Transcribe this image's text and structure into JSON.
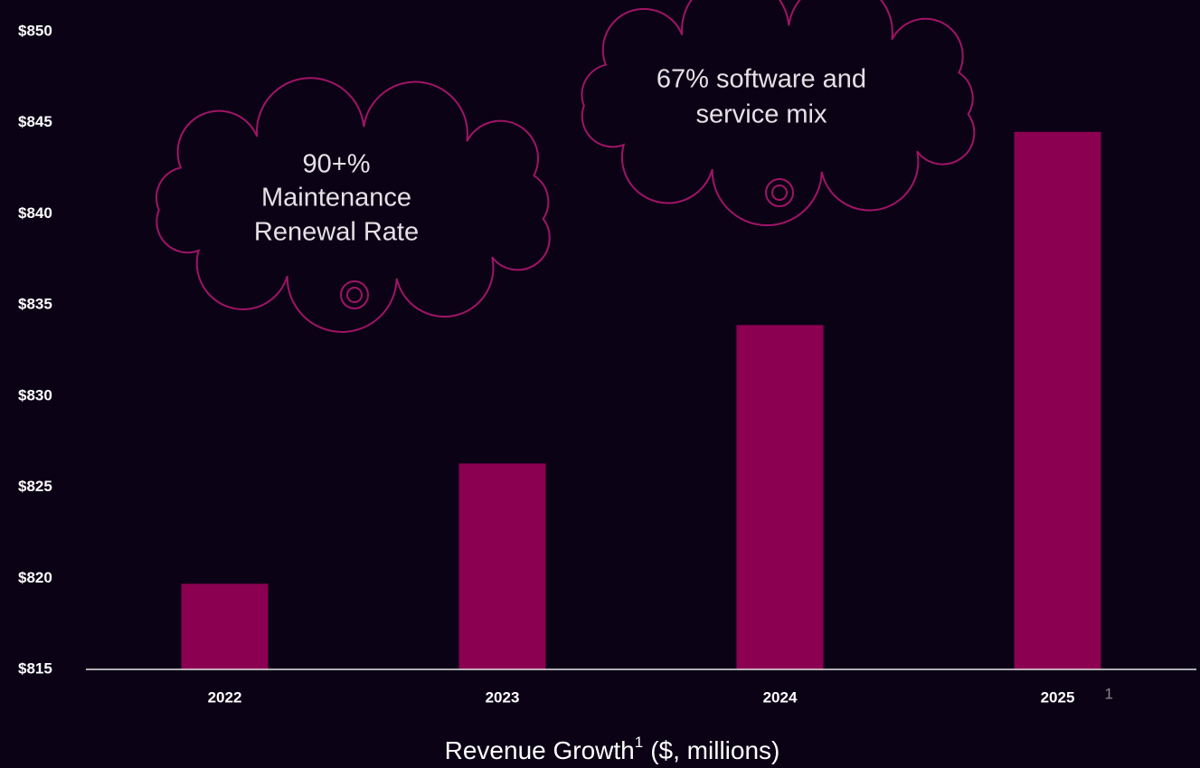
{
  "chart_data": {
    "type": "bar",
    "title": "Revenue Growth",
    "title_note_mark": "1",
    "subtitle": "($, millions)",
    "footnote_mark": "1",
    "categories": [
      "2022",
      "2023",
      "2024",
      "2025"
    ],
    "values": [
      819.7,
      826.3,
      833.9,
      844.5
    ],
    "color": "#8b0051",
    "ylim": [
      815,
      850
    ],
    "yticks": [
      {
        "value": 815,
        "label": "$815"
      },
      {
        "value": 820,
        "label": "$820"
      },
      {
        "value": 825,
        "label": "$825"
      },
      {
        "value": 830,
        "label": "$830"
      },
      {
        "value": 835,
        "label": "$835"
      },
      {
        "value": 840,
        "label": "$840"
      },
      {
        "value": 845,
        "label": "$845"
      },
      {
        "value": 850,
        "label": "$850"
      }
    ],
    "grid": false,
    "annotations": [
      {
        "lines": [
          "90+%",
          "Maintenance",
          "Renewal Rate"
        ]
      },
      {
        "lines": [
          "67% software and",
          "service mix"
        ]
      }
    ]
  }
}
